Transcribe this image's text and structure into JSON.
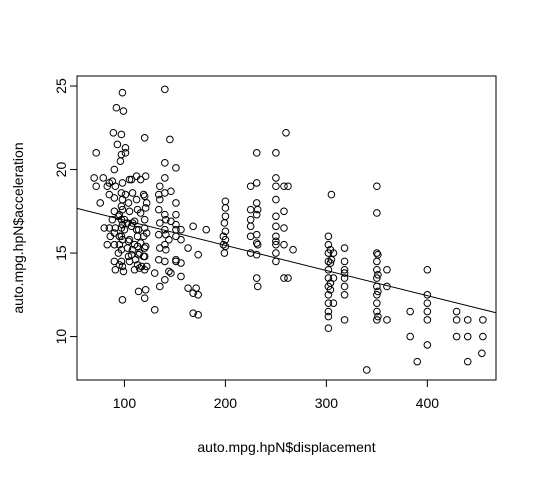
{
  "chart_data": {
    "type": "scatter",
    "xlabel": "auto.mpg.hpN$displacement",
    "ylabel": "auto.mpg.hpN$acceleration",
    "xlim": [
      53,
      468
    ],
    "ylim": [
      7.4,
      25.6
    ],
    "x_ticks": [
      100,
      200,
      300,
      400
    ],
    "y_ticks": [
      10,
      15,
      20,
      25
    ],
    "grid": false,
    "legend": "none",
    "colors": {
      "points": "#000000",
      "line": "#000000",
      "axes": "#000000"
    },
    "regression_line": {
      "slope": -0.01505,
      "intercept": 18.47
    },
    "points": [
      [
        70,
        19.5
      ],
      [
        72,
        21.0
      ],
      [
        72,
        19.0
      ],
      [
        76,
        18.0
      ],
      [
        79,
        19.5
      ],
      [
        80,
        16.5
      ],
      [
        83,
        15.5
      ],
      [
        83,
        19.0
      ],
      [
        85,
        16.5
      ],
      [
        85,
        18.5
      ],
      [
        85,
        19.2
      ],
      [
        86,
        16.0
      ],
      [
        88,
        17.0
      ],
      [
        88,
        19.3
      ],
      [
        89,
        22.2
      ],
      [
        90,
        14.5
      ],
      [
        90,
        15.5
      ],
      [
        90,
        16.2
      ],
      [
        90,
        17.5
      ],
      [
        90,
        18.3
      ],
      [
        90,
        20.0
      ],
      [
        91,
        14.0
      ],
      [
        91,
        16.5
      ],
      [
        91,
        19.0
      ],
      [
        92,
        23.7
      ],
      [
        93,
        21.5
      ],
      [
        94,
        15.0
      ],
      [
        94,
        17.2
      ],
      [
        95,
        14.3
      ],
      [
        95,
        15.5
      ],
      [
        95,
        16.0
      ],
      [
        95,
        17.3
      ],
      [
        96,
        20.5
      ],
      [
        97,
        14.5
      ],
      [
        97,
        15.2
      ],
      [
        97,
        16.0
      ],
      [
        97,
        16.5
      ],
      [
        97,
        17.0
      ],
      [
        97,
        17.8
      ],
      [
        97,
        18.6
      ],
      [
        97,
        20.9
      ],
      [
        97,
        22.1
      ],
      [
        98,
        12.2
      ],
      [
        98,
        14.2
      ],
      [
        98,
        15.8
      ],
      [
        98,
        16.7
      ],
      [
        98,
        17.6
      ],
      [
        98,
        18.2
      ],
      [
        98,
        19.2
      ],
      [
        98,
        24.6
      ],
      [
        99,
        13.9
      ],
      [
        99,
        23.5
      ],
      [
        100,
        16.4
      ],
      [
        100,
        17.0
      ],
      [
        101,
        18.5
      ],
      [
        101,
        21.3
      ],
      [
        101,
        21.0
      ],
      [
        103,
        15.3
      ],
      [
        103,
        16.8
      ],
      [
        104,
        14.8
      ],
      [
        104,
        15.7
      ],
      [
        104,
        18.0
      ],
      [
        105,
        14.5
      ],
      [
        105,
        15.8
      ],
      [
        105,
        17.5
      ],
      [
        105,
        19.4
      ],
      [
        107,
        14.9
      ],
      [
        107,
        16.6
      ],
      [
        107,
        19.4
      ],
      [
        108,
        15.2
      ],
      [
        108,
        16.8
      ],
      [
        108,
        18.6
      ],
      [
        110,
        14.0
      ],
      [
        110,
        15.5
      ],
      [
        110,
        16.9
      ],
      [
        111,
        14.6
      ],
      [
        112,
        16.4
      ],
      [
        112,
        18.2
      ],
      [
        112,
        19.6
      ],
      [
        113,
        14.3
      ],
      [
        113,
        15.4
      ],
      [
        113,
        16.0
      ],
      [
        113,
        17.6
      ],
      [
        114,
        12.7
      ],
      [
        114,
        14.9
      ],
      [
        114,
        16.4
      ],
      [
        115,
        14.1
      ],
      [
        115,
        15.0
      ],
      [
        116,
        15.6
      ],
      [
        116,
        17.4
      ],
      [
        116,
        19.4
      ],
      [
        117,
        14.2
      ],
      [
        119,
        14.8
      ],
      [
        119,
        16.0
      ],
      [
        119,
        18.5
      ],
      [
        120,
        12.3
      ],
      [
        120,
        14.0
      ],
      [
        120,
        14.8
      ],
      [
        120,
        15.3
      ],
      [
        120,
        16.5
      ],
      [
        120,
        17.0
      ],
      [
        120,
        18.4
      ],
      [
        120,
        21.9
      ],
      [
        121,
        15.4
      ],
      [
        121,
        17.7
      ],
      [
        121,
        19.6
      ],
      [
        121,
        12.8
      ],
      [
        122,
        14.2
      ],
      [
        122,
        16.2
      ],
      [
        122,
        18.0
      ],
      [
        130,
        11.6
      ],
      [
        130,
        13.8
      ],
      [
        134,
        14.6
      ],
      [
        134,
        16.1
      ],
      [
        134,
        17.6
      ],
      [
        134,
        18.5
      ],
      [
        135,
        13.0
      ],
      [
        135,
        15.3
      ],
      [
        135,
        16.8
      ],
      [
        135,
        18.2
      ],
      [
        135,
        19.0
      ],
      [
        140,
        13.4
      ],
      [
        140,
        14.5
      ],
      [
        140,
        15.5
      ],
      [
        140,
        16.4
      ],
      [
        140,
        17.3
      ],
      [
        140,
        18.6
      ],
      [
        140,
        19.5
      ],
      [
        140,
        20.4
      ],
      [
        140,
        24.8
      ],
      [
        141,
        15.2
      ],
      [
        141,
        16.1
      ],
      [
        141,
        17.0
      ],
      [
        144,
        15.8
      ],
      [
        144,
        13.9
      ],
      [
        145,
        21.8
      ],
      [
        146,
        13.8
      ],
      [
        146,
        16.9
      ],
      [
        146,
        18.7
      ],
      [
        151,
        14.6
      ],
      [
        151,
        16.0
      ],
      [
        151,
        16.4
      ],
      [
        151,
        17.3
      ],
      [
        151,
        18.0
      ],
      [
        151,
        20.1
      ],
      [
        151,
        16.7
      ],
      [
        151,
        14.5
      ],
      [
        156,
        13.6
      ],
      [
        156,
        14.4
      ],
      [
        156,
        15.8
      ],
      [
        156,
        16.4
      ],
      [
        163,
        12.9
      ],
      [
        163,
        15.3
      ],
      [
        168,
        11.4
      ],
      [
        168,
        12.6
      ],
      [
        168,
        16.6
      ],
      [
        171,
        12.9
      ],
      [
        173,
        11.3
      ],
      [
        173,
        12.5
      ],
      [
        173,
        14.9
      ],
      [
        181,
        16.4
      ],
      [
        198,
        15.5
      ],
      [
        198,
        16.0
      ],
      [
        199,
        15.0
      ],
      [
        199,
        16.8
      ],
      [
        200,
        15.4
      ],
      [
        200,
        15.8
      ],
      [
        200,
        16.3
      ],
      [
        200,
        17.2
      ],
      [
        200,
        17.7
      ],
      [
        200,
        18.1
      ],
      [
        225,
        16.0
      ],
      [
        225,
        16.6
      ],
      [
        225,
        17.0
      ],
      [
        225,
        17.6
      ],
      [
        225,
        19.0
      ],
      [
        225,
        15.0
      ],
      [
        231,
        13.5
      ],
      [
        231,
        14.9
      ],
      [
        231,
        15.6
      ],
      [
        231,
        16.1
      ],
      [
        231,
        17.3
      ],
      [
        231,
        18.0
      ],
      [
        231,
        19.2
      ],
      [
        231,
        21.0
      ],
      [
        232,
        13.0
      ],
      [
        232,
        15.5
      ],
      [
        232,
        17.6
      ],
      [
        250,
        14.5
      ],
      [
        250,
        15.0
      ],
      [
        250,
        15.5
      ],
      [
        250,
        16.0
      ],
      [
        250,
        16.6
      ],
      [
        250,
        17.2
      ],
      [
        250,
        18.2
      ],
      [
        250,
        19.0
      ],
      [
        250,
        21.0
      ],
      [
        250,
        19.5
      ],
      [
        250,
        15.7
      ],
      [
        258,
        13.5
      ],
      [
        258,
        15.5
      ],
      [
        258,
        16.5
      ],
      [
        258,
        17.5
      ],
      [
        258,
        19.0
      ],
      [
        260,
        22.2
      ],
      [
        262,
        13.5
      ],
      [
        262,
        19.0
      ],
      [
        267,
        15.2
      ],
      [
        302,
        10.5
      ],
      [
        302,
        11.2
      ],
      [
        302,
        12.0
      ],
      [
        302,
        12.5
      ],
      [
        302,
        13.0
      ],
      [
        302,
        13.5
      ],
      [
        302,
        14.0
      ],
      [
        302,
        14.5
      ],
      [
        302,
        15.0
      ],
      [
        302,
        15.5
      ],
      [
        302,
        16.0
      ],
      [
        302,
        11.5
      ],
      [
        304,
        12.8
      ],
      [
        304,
        13.2
      ],
      [
        304,
        14.4
      ],
      [
        304,
        15.2
      ],
      [
        305,
        14.6
      ],
      [
        305,
        18.5
      ],
      [
        307,
        12.0
      ],
      [
        307,
        13.5
      ],
      [
        307,
        15.0
      ],
      [
        318,
        11.0
      ],
      [
        318,
        12.5
      ],
      [
        318,
        13.0
      ],
      [
        318,
        13.5
      ],
      [
        318,
        14.0
      ],
      [
        318,
        14.5
      ],
      [
        318,
        15.3
      ],
      [
        318,
        13.8
      ],
      [
        340,
        8.0
      ],
      [
        350,
        11.0
      ],
      [
        350,
        11.5
      ],
      [
        350,
        12.0
      ],
      [
        350,
        12.5
      ],
      [
        350,
        13.0
      ],
      [
        350,
        13.5
      ],
      [
        350,
        14.0
      ],
      [
        350,
        14.5
      ],
      [
        350,
        15.0
      ],
      [
        350,
        17.4
      ],
      [
        350,
        19.0
      ],
      [
        351,
        11.2
      ],
      [
        351,
        12.7
      ],
      [
        351,
        13.7
      ],
      [
        351,
        14.9
      ],
      [
        360,
        11.0
      ],
      [
        360,
        13.0
      ],
      [
        360,
        14.0
      ],
      [
        383,
        10.0
      ],
      [
        383,
        11.5
      ],
      [
        390,
        8.5
      ],
      [
        400,
        9.5
      ],
      [
        400,
        11.0
      ],
      [
        400,
        11.5
      ],
      [
        400,
        12.0
      ],
      [
        400,
        12.5
      ],
      [
        400,
        14.0
      ],
      [
        429,
        10.0
      ],
      [
        429,
        11.0
      ],
      [
        429,
        11.5
      ],
      [
        440,
        8.5
      ],
      [
        440,
        10.0
      ],
      [
        440,
        11.0
      ],
      [
        454,
        9.0
      ],
      [
        455,
        10.0
      ],
      [
        455,
        11.0
      ]
    ]
  }
}
